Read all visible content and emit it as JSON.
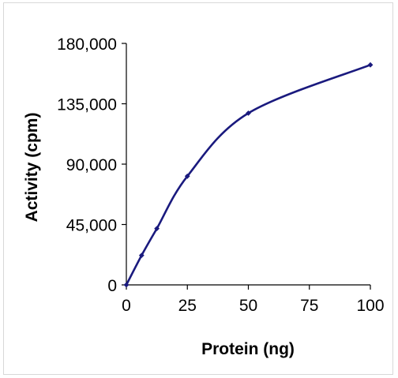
{
  "chart_data": {
    "type": "line",
    "title": "",
    "xlabel": "Protein (ng)",
    "ylabel": "Activity (cpm)",
    "xlim": [
      0,
      100
    ],
    "ylim": [
      0,
      180000
    ],
    "x_ticks": [
      0,
      25,
      50,
      75,
      100
    ],
    "x_tick_labels": [
      "0",
      "25",
      "50",
      "75",
      "100"
    ],
    "y_ticks": [
      0,
      45000,
      90000,
      135000,
      180000
    ],
    "y_tick_labels": [
      "0",
      "45,000",
      "90,000",
      "135,000",
      "180,000"
    ],
    "grid": false,
    "legend": "none",
    "series": [
      {
        "x": [
          0,
          6.25,
          12.5,
          25,
          50,
          100
        ],
        "y": [
          0,
          22000,
          42000,
          81000,
          128000,
          164000
        ],
        "color": "#1a1a7e"
      }
    ]
  }
}
